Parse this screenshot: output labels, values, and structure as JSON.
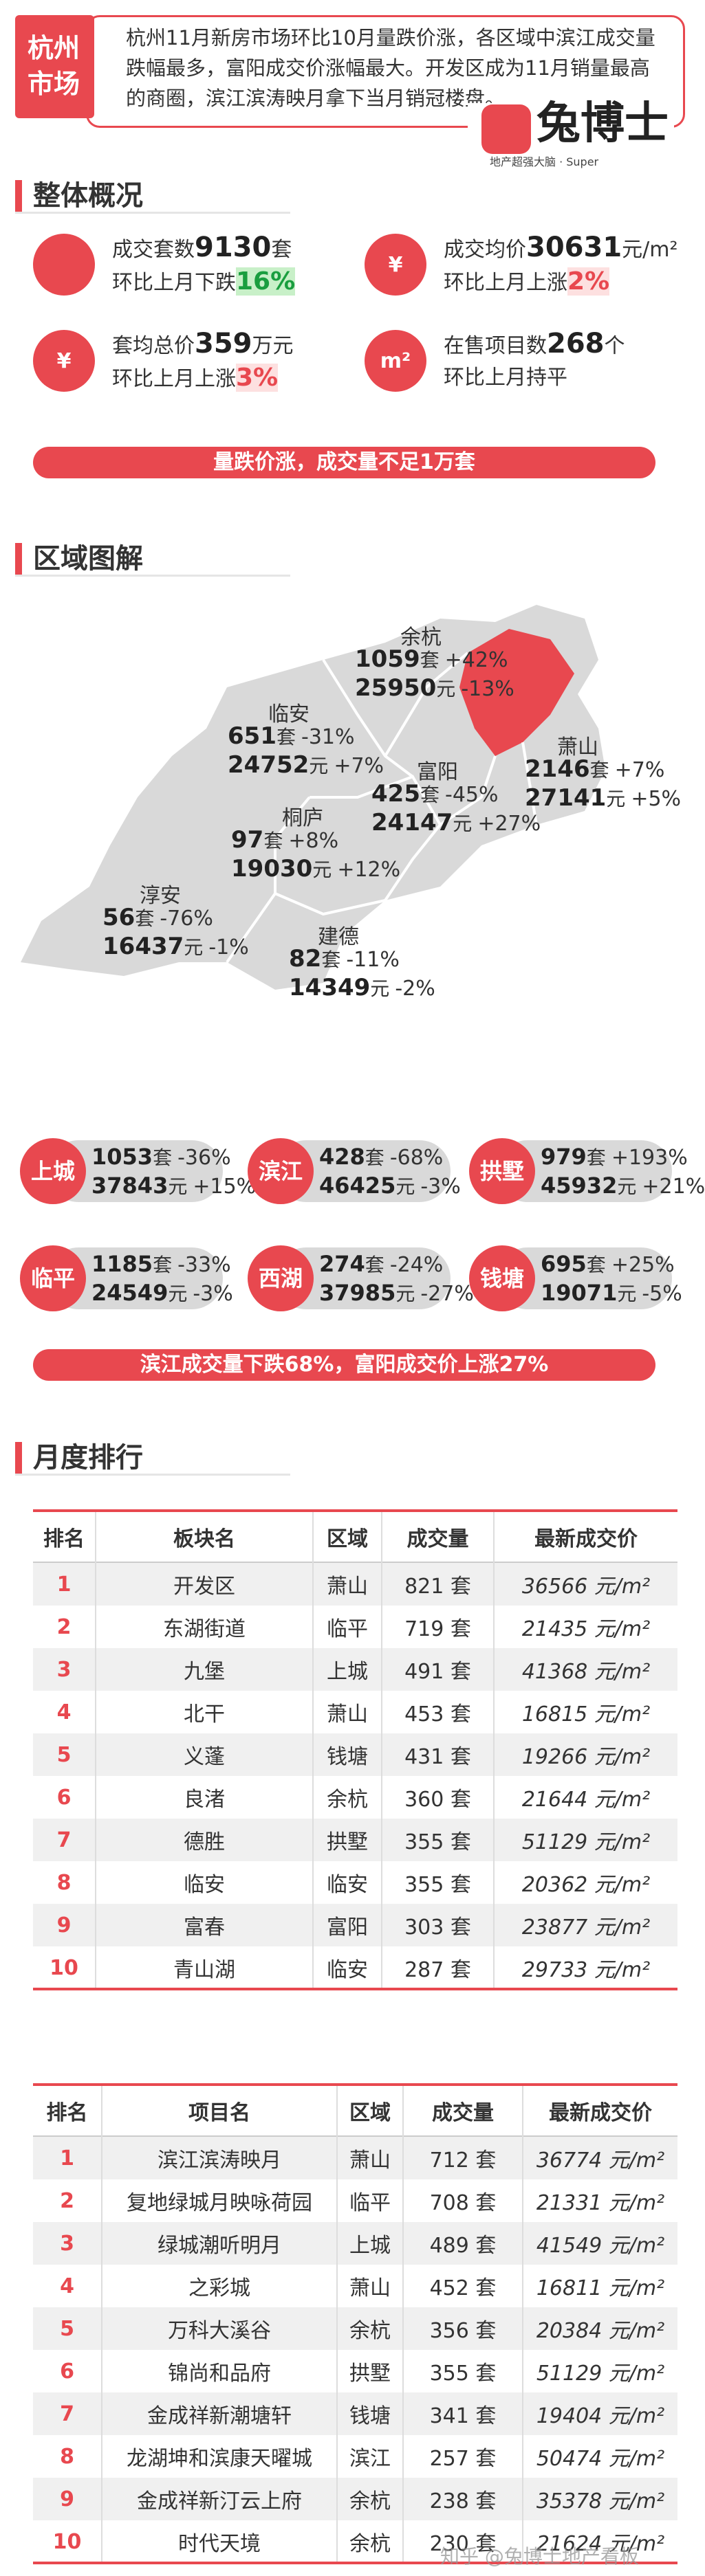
{
  "header": {
    "tag": "杭州市场",
    "summary": "杭州11月新房市场环比10月量跌价涨，各区域中滨江成交量跌幅最多，富阳成交价涨幅最大。开发区成为11月销量最高的商圈，滨江滨涛映月拿下当月销冠楼盘。",
    "logo": "兔博士",
    "logo_sub": "地产超强大脑 · Super"
  },
  "overview": {
    "title": "整体概况",
    "stats": [
      {
        "label": "成交套数",
        "value": "9130",
        "unit": "套",
        "change_label": "环比上月下跌",
        "change": "16%"
      },
      {
        "icon": "¥",
        "label": "成交均价",
        "value": "30631",
        "unit": "元/m²",
        "change_label": "环比上月上涨",
        "change": "2%"
      },
      {
        "icon": "¥",
        "label": "套均总价",
        "value": "359",
        "unit": "万元",
        "change_label": "环比上月上涨",
        "change": "3%"
      },
      {
        "icon": "m²",
        "label": "在售项目数",
        "value": "268",
        "unit": "个",
        "change_label": "环比上月持平"
      }
    ],
    "banner": "量跌价涨，成交量不足1万套"
  },
  "regions": {
    "title": "区域图解",
    "units": {
      "count": "套",
      "price": "元"
    },
    "map": [
      {
        "name": "余杭",
        "count": "1059",
        "change": "+42%",
        "price": "25950",
        "price_change": "-13%"
      },
      {
        "name": "临安",
        "count": "651",
        "change": "-31%",
        "price": "24752",
        "price_change": "+7%"
      },
      {
        "name": "萧山",
        "count": "2146",
        "change": "+7%",
        "price": "27141",
        "price_change": "+5%"
      },
      {
        "name": "富阳",
        "count": "425",
        "change": "-45%",
        "price": "24147",
        "price_change": "+27%"
      },
      {
        "name": "桐庐",
        "count": "97",
        "change": "+8%",
        "price": "19030",
        "price_change": "+12%"
      },
      {
        "name": "淳安",
        "count": "56",
        "change": "-76%",
        "price": "16437",
        "price_change": "-1%"
      },
      {
        "name": "建德",
        "count": "82",
        "change": "-11%",
        "price": "14349",
        "price_change": "-2%"
      }
    ],
    "districts": [
      {
        "name": "上城",
        "count": "1053",
        "change": "-36%",
        "price": "37843",
        "price_change": "+15%"
      },
      {
        "name": "滨江",
        "count": "428",
        "change": "-68%",
        "price": "46425",
        "price_change": "-3%"
      },
      {
        "name": "拱墅",
        "count": "979",
        "change": "+193%",
        "price": "45932",
        "price_change": "+21%"
      },
      {
        "name": "临平",
        "count": "1185",
        "change": "-33%",
        "price": "24549",
        "price_change": "-3%"
      },
      {
        "name": "西湖",
        "count": "274",
        "change": "-24%",
        "price": "37985",
        "price_change": "-27%"
      },
      {
        "name": "钱塘",
        "count": "695",
        "change": "+25%",
        "price": "19071",
        "price_change": "-5%"
      }
    ],
    "banner": "滨江成交量下跌68%，富阳成交价上涨27%"
  },
  "ranking": {
    "title": "月度排行",
    "tables": [
      {
        "header": [
          "排名",
          "板块名",
          "区域",
          "成交量",
          "最新成交价"
        ],
        "rows": [
          [
            "1",
            "开发区",
            "萧山",
            "821 套",
            "36566 元/m²"
          ],
          [
            "2",
            "东湖街道",
            "临平",
            "719 套",
            "21435 元/m²"
          ],
          [
            "3",
            "九堡",
            "上城",
            "491 套",
            "41368 元/m²"
          ],
          [
            "4",
            "北干",
            "萧山",
            "453 套",
            "16815 元/m²"
          ],
          [
            "5",
            "义蓬",
            "钱塘",
            "431 套",
            "19266 元/m²"
          ],
          [
            "6",
            "良渚",
            "余杭",
            "360 套",
            "21644 元/m²"
          ],
          [
            "7",
            "德胜",
            "拱墅",
            "355 套",
            "51129 元/m²"
          ],
          [
            "8",
            "临安",
            "临安",
            "355 套",
            "20362 元/m²"
          ],
          [
            "9",
            "富春",
            "富阳",
            "303 套",
            "23877 元/m²"
          ],
          [
            "10",
            "青山湖",
            "临安",
            "287 套",
            "29733 元/m²"
          ]
        ]
      },
      {
        "header": [
          "排名",
          "项目名",
          "区域",
          "成交量",
          "最新成交价"
        ],
        "rows": [
          [
            "1",
            "滨江滨涛映月",
            "萧山",
            "712 套",
            "36774 元/m²"
          ],
          [
            "2",
            "复地绿城月映咏荷园",
            "临平",
            "708 套",
            "21331 元/m²"
          ],
          [
            "3",
            "绿城潮听明月",
            "上城",
            "489 套",
            "41549 元/m²"
          ],
          [
            "4",
            "之彩城",
            "萧山",
            "452 套",
            "16811 元/m²"
          ],
          [
            "5",
            "万科大溪谷",
            "余杭",
            "356 套",
            "20384 元/m²"
          ],
          [
            "6",
            "锦尚和品府",
            "拱墅",
            "355 套",
            "51129 元/m²"
          ],
          [
            "7",
            "金成祥新潮塘轩",
            "钱塘",
            "341 套",
            "19404 元/m²"
          ],
          [
            "8",
            "龙湖坤和滨康天曜城",
            "滨江",
            "257 套",
            "50474 元/m²"
          ],
          [
            "9",
            "金成祥新汀云上府",
            "余杭",
            "238 套",
            "35378 元/m²"
          ],
          [
            "10",
            "时代天境",
            "余杭",
            "230 套",
            "21624 元/m²"
          ]
        ]
      }
    ]
  },
  "watermark": "知乎 @兔博士地产看板"
}
